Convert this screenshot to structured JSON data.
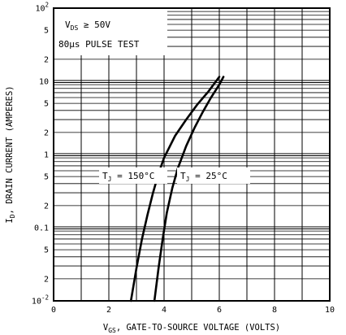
{
  "chart_data": {
    "type": "line",
    "x_axis": {
      "label_main": "V",
      "label_sub": "GS",
      "label_rest": ", GATE-TO-SOURCE VOLTAGE (VOLTS)",
      "range": [
        0,
        10
      ],
      "scale": "linear",
      "ticks": [
        "0",
        "2",
        "4",
        "6",
        "8",
        "10"
      ]
    },
    "y_axis": {
      "label_main": "I",
      "label_sub": "D",
      "label_rest": ", DRAIN CURRENT (AMPERES)",
      "range": [
        0.01,
        100
      ],
      "scale": "log",
      "ticks": [
        {
          "value": 100,
          "mantissa": "10",
          "exp": "2"
        },
        {
          "value": 50,
          "mantissa": "5",
          "exp": ""
        },
        {
          "value": 20,
          "mantissa": "2",
          "exp": ""
        },
        {
          "value": 10,
          "mantissa": "10",
          "exp": ""
        },
        {
          "value": 5,
          "mantissa": "5",
          "exp": ""
        },
        {
          "value": 2,
          "mantissa": "2",
          "exp": ""
        },
        {
          "value": 1,
          "mantissa": "1",
          "exp": ""
        },
        {
          "value": 0.5,
          "mantissa": "5",
          "exp": ""
        },
        {
          "value": 0.2,
          "mantissa": "2",
          "exp": ""
        },
        {
          "value": 0.1,
          "mantissa": "0.1",
          "exp": ""
        },
        {
          "value": 0.05,
          "mantissa": "5",
          "exp": ""
        },
        {
          "value": 0.02,
          "mantissa": "2",
          "exp": ""
        },
        {
          "value": 0.01,
          "mantissa": "10",
          "exp": "-2"
        }
      ]
    },
    "grid": true,
    "conditions": {
      "line1_main": "V",
      "line1_sub": "DS",
      "line1_rest": " ≥ 50V",
      "line2": "80μs PULSE TEST"
    },
    "series": [
      {
        "name_main": "T",
        "name_sub": "J",
        "name_rest": " = 150°C",
        "x": [
          2.8,
          3.0,
          3.2,
          3.4,
          3.6,
          3.8,
          4.0,
          4.4,
          4.8,
          5.2,
          5.6,
          6.0
        ],
        "y": [
          0.01,
          0.028,
          0.07,
          0.15,
          0.3,
          0.55,
          0.9,
          1.8,
          3.0,
          4.8,
          7.2,
          11.5
        ]
      },
      {
        "name_main": "T",
        "name_sub": "J",
        "name_rest": " = 25°C",
        "x": [
          3.65,
          3.8,
          3.95,
          4.1,
          4.3,
          4.5,
          4.8,
          5.1,
          5.4,
          5.7,
          6.0,
          6.15
        ],
        "y": [
          0.01,
          0.028,
          0.07,
          0.16,
          0.35,
          0.65,
          1.3,
          2.3,
          3.8,
          6.0,
          9.0,
          11.5
        ]
      }
    ]
  }
}
